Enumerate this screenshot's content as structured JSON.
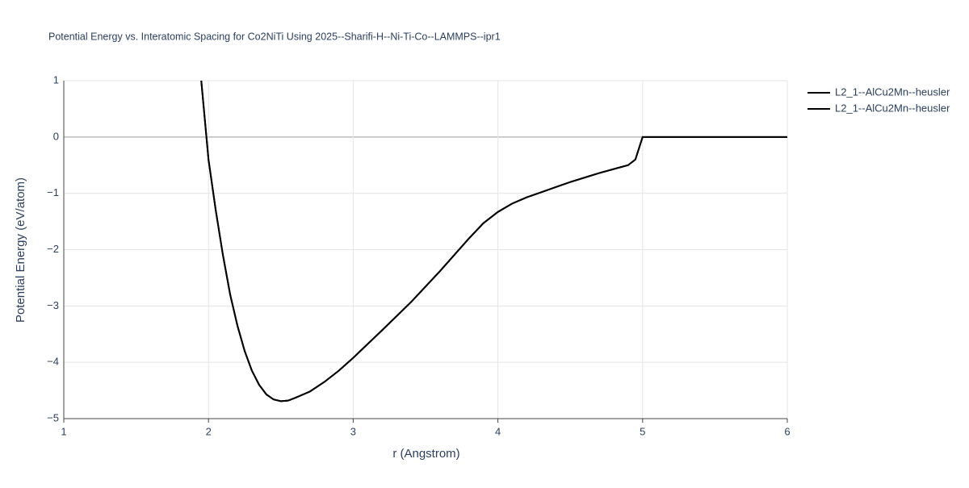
{
  "chart_data": {
    "type": "line",
    "title": "Potential Energy vs. Interatomic Spacing for Co2NiTi Using 2025--Sharifi-H--Ni-Ti-Co--LAMMPS--ipr1",
    "x_label": "r (Angstrom)",
    "y_label": "Potential Energy (eV/atom)",
    "x": [
      1.95,
      2.0,
      2.05,
      2.1,
      2.15,
      2.2,
      2.25,
      2.3,
      2.35,
      2.4,
      2.45,
      2.5,
      2.55,
      2.6,
      2.7,
      2.8,
      2.9,
      3.0,
      3.2,
      3.4,
      3.6,
      3.8,
      3.9,
      4.0,
      4.1,
      4.2,
      4.3,
      4.4,
      4.5,
      4.6,
      4.7,
      4.8,
      4.9,
      4.95,
      5.0,
      5.5,
      6.0
    ],
    "series": [
      {
        "name": "L2_1--AlCu2Mn--heusler",
        "color": "#000000",
        "values": [
          1.0,
          -0.4,
          -1.3,
          -2.1,
          -2.8,
          -3.35,
          -3.8,
          -4.15,
          -4.4,
          -4.57,
          -4.66,
          -4.69,
          -4.68,
          -4.63,
          -4.52,
          -4.35,
          -4.15,
          -3.92,
          -3.43,
          -2.93,
          -2.38,
          -1.8,
          -1.53,
          -1.33,
          -1.18,
          -1.07,
          -0.98,
          -0.89,
          -0.8,
          -0.72,
          -0.64,
          -0.57,
          -0.5,
          -0.4,
          0,
          0,
          0
        ]
      },
      {
        "name": "L2_1--AlCu2Mn--heusler",
        "color": "#000000",
        "values": [
          1.0,
          -0.4,
          -1.3,
          -2.1,
          -2.8,
          -3.35,
          -3.8,
          -4.15,
          -4.4,
          -4.57,
          -4.66,
          -4.69,
          -4.68,
          -4.63,
          -4.52,
          -4.35,
          -4.15,
          -3.92,
          -3.43,
          -2.93,
          -2.38,
          -1.8,
          -1.53,
          -1.33,
          -1.18,
          -1.07,
          -0.98,
          -0.89,
          -0.8,
          -0.72,
          -0.64,
          -0.57,
          -0.5,
          -0.4,
          0,
          0,
          0
        ]
      }
    ],
    "xlim": [
      1,
      6
    ],
    "xticks": [
      1,
      2,
      3,
      4,
      5,
      6
    ],
    "ylim": [
      -5,
      1
    ],
    "yticks": [
      {
        "value": -5,
        "label": "−5"
      },
      {
        "value": -4,
        "label": "−4"
      },
      {
        "value": -3,
        "label": "−3"
      },
      {
        "value": -2,
        "label": "−2"
      },
      {
        "value": -1,
        "label": "−1"
      },
      0,
      1
    ],
    "grid": true
  }
}
